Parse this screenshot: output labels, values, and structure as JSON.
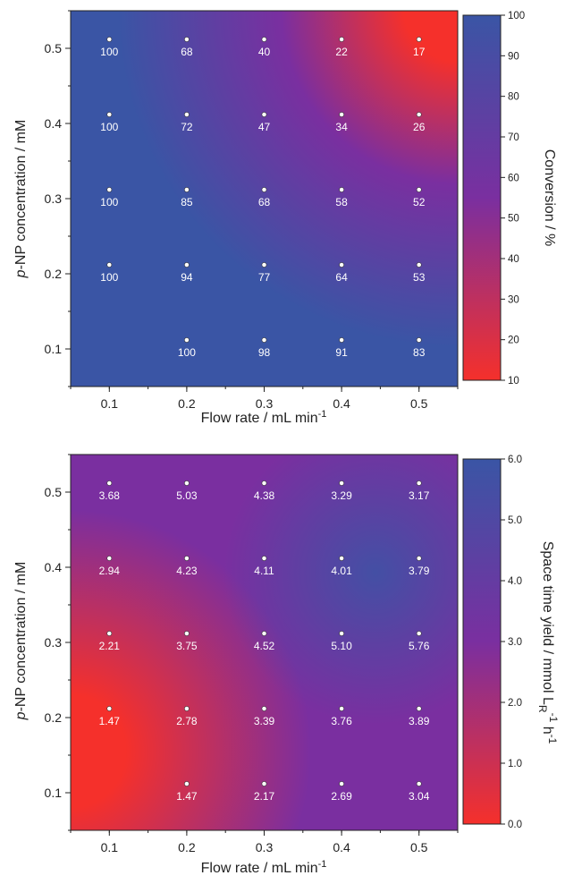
{
  "chart_data": [
    {
      "type": "heatmap",
      "xlabel": "Flow rate / mL min",
      "xlabel_sup": "-1",
      "ylabel_italic": "p",
      "ylabel": "-NP concentration / mM",
      "x": [
        0.1,
        0.2,
        0.3,
        0.4,
        0.5
      ],
      "y": [
        0.1,
        0.2,
        0.3,
        0.4,
        0.5
      ],
      "xticks": [
        "0.1",
        "0.2",
        "0.3",
        "0.4",
        "0.5"
      ],
      "yticks": [
        "0.1",
        "0.2",
        "0.3",
        "0.4",
        "0.5"
      ],
      "xlim": [
        0.05,
        0.55
      ],
      "ylim": [
        0.05,
        0.55
      ],
      "points": [
        {
          "x": 0.1,
          "y": 0.5,
          "label": "100"
        },
        {
          "x": 0.2,
          "y": 0.5,
          "label": "68"
        },
        {
          "x": 0.3,
          "y": 0.5,
          "label": "40"
        },
        {
          "x": 0.4,
          "y": 0.5,
          "label": "22"
        },
        {
          "x": 0.5,
          "y": 0.5,
          "label": "17"
        },
        {
          "x": 0.1,
          "y": 0.4,
          "label": "100"
        },
        {
          "x": 0.2,
          "y": 0.4,
          "label": "72"
        },
        {
          "x": 0.3,
          "y": 0.4,
          "label": "47"
        },
        {
          "x": 0.4,
          "y": 0.4,
          "label": "34"
        },
        {
          "x": 0.5,
          "y": 0.4,
          "label": "26"
        },
        {
          "x": 0.1,
          "y": 0.3,
          "label": "100"
        },
        {
          "x": 0.2,
          "y": 0.3,
          "label": "85"
        },
        {
          "x": 0.3,
          "y": 0.3,
          "label": "68"
        },
        {
          "x": 0.4,
          "y": 0.3,
          "label": "58"
        },
        {
          "x": 0.5,
          "y": 0.3,
          "label": "52"
        },
        {
          "x": 0.1,
          "y": 0.2,
          "label": "100"
        },
        {
          "x": 0.2,
          "y": 0.2,
          "label": "94"
        },
        {
          "x": 0.3,
          "y": 0.2,
          "label": "77"
        },
        {
          "x": 0.4,
          "y": 0.2,
          "label": "64"
        },
        {
          "x": 0.5,
          "y": 0.2,
          "label": "53"
        },
        {
          "x": 0.2,
          "y": 0.1,
          "label": "100"
        },
        {
          "x": 0.3,
          "y": 0.1,
          "label": "98"
        },
        {
          "x": 0.4,
          "y": 0.1,
          "label": "91"
        },
        {
          "x": 0.5,
          "y": 0.1,
          "label": "83"
        }
      ],
      "colorbar": {
        "title": "Conversion / %",
        "min": 10,
        "max": 100,
        "ticks": [
          "10",
          "20",
          "30",
          "40",
          "50",
          "60",
          "70",
          "80",
          "90",
          "100"
        ],
        "color_low": "#f5302b",
        "color_mid": "#7a2fa0",
        "color_high": "#3a55a5"
      }
    },
    {
      "type": "heatmap",
      "xlabel": "Flow rate / mL min",
      "xlabel_sup": "-1",
      "ylabel_italic": "p",
      "ylabel": "-NP concentration / mM",
      "x": [
        0.1,
        0.2,
        0.3,
        0.4,
        0.5
      ],
      "y": [
        0.1,
        0.2,
        0.3,
        0.4,
        0.5
      ],
      "xticks": [
        "0.1",
        "0.2",
        "0.3",
        "0.4",
        "0.5"
      ],
      "yticks": [
        "0.1",
        "0.2",
        "0.3",
        "0.4",
        "0.5"
      ],
      "xlim": [
        0.05,
        0.55
      ],
      "ylim": [
        0.05,
        0.55
      ],
      "points": [
        {
          "x": 0.1,
          "y": 0.5,
          "label": "3.68"
        },
        {
          "x": 0.2,
          "y": 0.5,
          "label": "5.03"
        },
        {
          "x": 0.3,
          "y": 0.5,
          "label": "4.38"
        },
        {
          "x": 0.4,
          "y": 0.5,
          "label": "3.29"
        },
        {
          "x": 0.5,
          "y": 0.5,
          "label": "3.17"
        },
        {
          "x": 0.1,
          "y": 0.4,
          "label": "2.94"
        },
        {
          "x": 0.2,
          "y": 0.4,
          "label": "4.23"
        },
        {
          "x": 0.3,
          "y": 0.4,
          "label": "4.11"
        },
        {
          "x": 0.4,
          "y": 0.4,
          "label": "4.01"
        },
        {
          "x": 0.5,
          "y": 0.4,
          "label": "3.79"
        },
        {
          "x": 0.1,
          "y": 0.3,
          "label": "2.21"
        },
        {
          "x": 0.2,
          "y": 0.3,
          "label": "3.75"
        },
        {
          "x": 0.3,
          "y": 0.3,
          "label": "4.52"
        },
        {
          "x": 0.4,
          "y": 0.3,
          "label": "5.10"
        },
        {
          "x": 0.5,
          "y": 0.3,
          "label": "5.76"
        },
        {
          "x": 0.1,
          "y": 0.2,
          "label": "1.47"
        },
        {
          "x": 0.2,
          "y": 0.2,
          "label": "2.78"
        },
        {
          "x": 0.3,
          "y": 0.2,
          "label": "3.39"
        },
        {
          "x": 0.4,
          "y": 0.2,
          "label": "3.76"
        },
        {
          "x": 0.5,
          "y": 0.2,
          "label": "3.89"
        },
        {
          "x": 0.2,
          "y": 0.1,
          "label": "1.47"
        },
        {
          "x": 0.3,
          "y": 0.1,
          "label": "2.17"
        },
        {
          "x": 0.4,
          "y": 0.1,
          "label": "2.69"
        },
        {
          "x": 0.5,
          "y": 0.1,
          "label": "3.04"
        }
      ],
      "colorbar": {
        "title": "Space time yield / mmol L",
        "title_sub": "R",
        "title_sup1": "-1",
        "title_mid": " h",
        "title_sup2": "-1",
        "min": 0,
        "max": 6,
        "ticks": [
          "0.0",
          "1.0",
          "2.0",
          "3.0",
          "4.0",
          "5.0",
          "6.0"
        ],
        "color_low": "#f5302b",
        "color_mid": "#7a2fa0",
        "color_high": "#3a55a5"
      }
    }
  ]
}
